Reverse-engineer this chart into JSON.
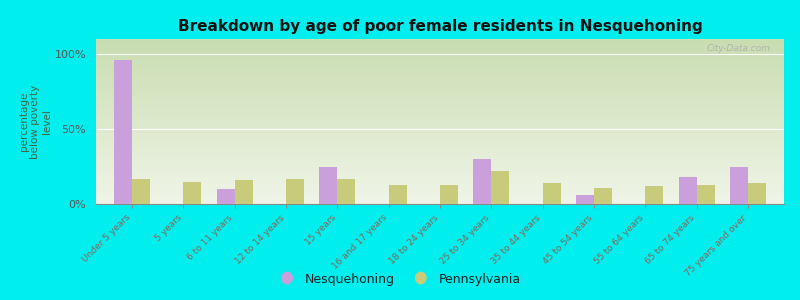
{
  "title": "Breakdown by age of poor female residents in Nesquehoning",
  "ylabel": "percentage\nbelow poverty\nlevel",
  "categories": [
    "Under 5 years",
    "5 years",
    "6 to 11 years",
    "12 to 14 years",
    "15 years",
    "16 and 17 years",
    "18 to 24 years",
    "25 to 34 years",
    "35 to 44 years",
    "45 to 54 years",
    "55 to 64 years",
    "65 to 74 years",
    "75 years and over"
  ],
  "nesquehoning": [
    96,
    0,
    10,
    0,
    25,
    0,
    0,
    30,
    0,
    6,
    0,
    18,
    25
  ],
  "pennsylvania": [
    17,
    15,
    16,
    17,
    17,
    13,
    13,
    22,
    14,
    11,
    12,
    13,
    14
  ],
  "bar_color_nesquehoning": "#c9a0dc",
  "bar_color_pennsylvania": "#c8cc7a",
  "background_color": "#00eeee",
  "ylim": [
    0,
    110
  ],
  "yticks": [
    0,
    50,
    100
  ],
  "ytick_labels": [
    "0%",
    "50%",
    "100%"
  ],
  "watermark": "City-Data.com",
  "legend_nesquehoning": "Nesquehoning",
  "legend_pennsylvania": "Pennsylvania",
  "gradient_top": "#c8ddb0",
  "gradient_bottom": "#f0f5e8",
  "tick_color": "#886655",
  "ylabel_color": "#446644"
}
